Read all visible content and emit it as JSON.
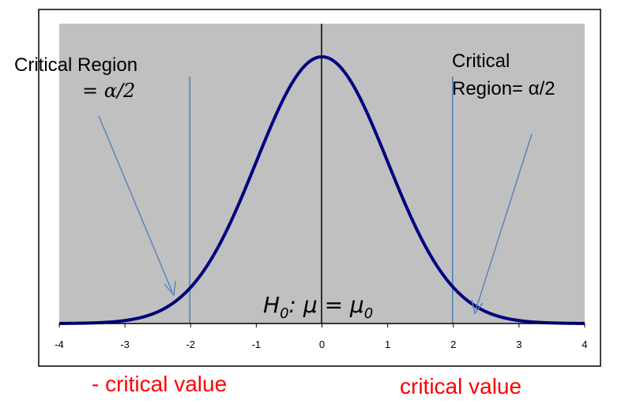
{
  "colors": {
    "plot_bg": "#c0c0c0",
    "curve": "#000080",
    "critical_line": "#4a7ebb",
    "arrow": "#4a7ebb",
    "label_red": "#ff0000"
  },
  "chart_data": {
    "type": "line",
    "curve": "standard-normal-density",
    "series": [
      {
        "x": [
          -4,
          -3.5,
          -3,
          -2.5,
          -2,
          -1.5,
          -1,
          -0.5,
          0,
          0.5,
          1,
          1.5,
          2,
          2.5,
          3,
          3.5,
          4
        ],
        "y": [
          0.0001,
          0.0009,
          0.0044,
          0.0175,
          0.054,
          0.1295,
          0.242,
          0.3521,
          0.3989,
          0.3521,
          0.242,
          0.1295,
          0.054,
          0.0175,
          0.0044,
          0.0009,
          0.0001
        ]
      }
    ],
    "xlim": [
      -4,
      4
    ],
    "ylim": [
      0,
      0.4
    ],
    "xticks": [
      "-4",
      "-3",
      "-2",
      "-1",
      "0",
      "1",
      "2",
      "3",
      "4"
    ],
    "critical_values": [
      -2,
      2
    ],
    "grid": false,
    "annotations": {
      "left_region_line1": "Critical Region",
      "left_region_line2": "= α/2",
      "right_region_line1": "Critical",
      "right_region_line2": "Region= α/2",
      "hypothesis_H": "H",
      "hypothesis_H_sub": "0",
      "hypothesis_mid": ": μ = μ",
      "hypothesis_mu_sub": "0",
      "neg_critical_label": "- critical value",
      "pos_critical_label": "critical value"
    }
  }
}
